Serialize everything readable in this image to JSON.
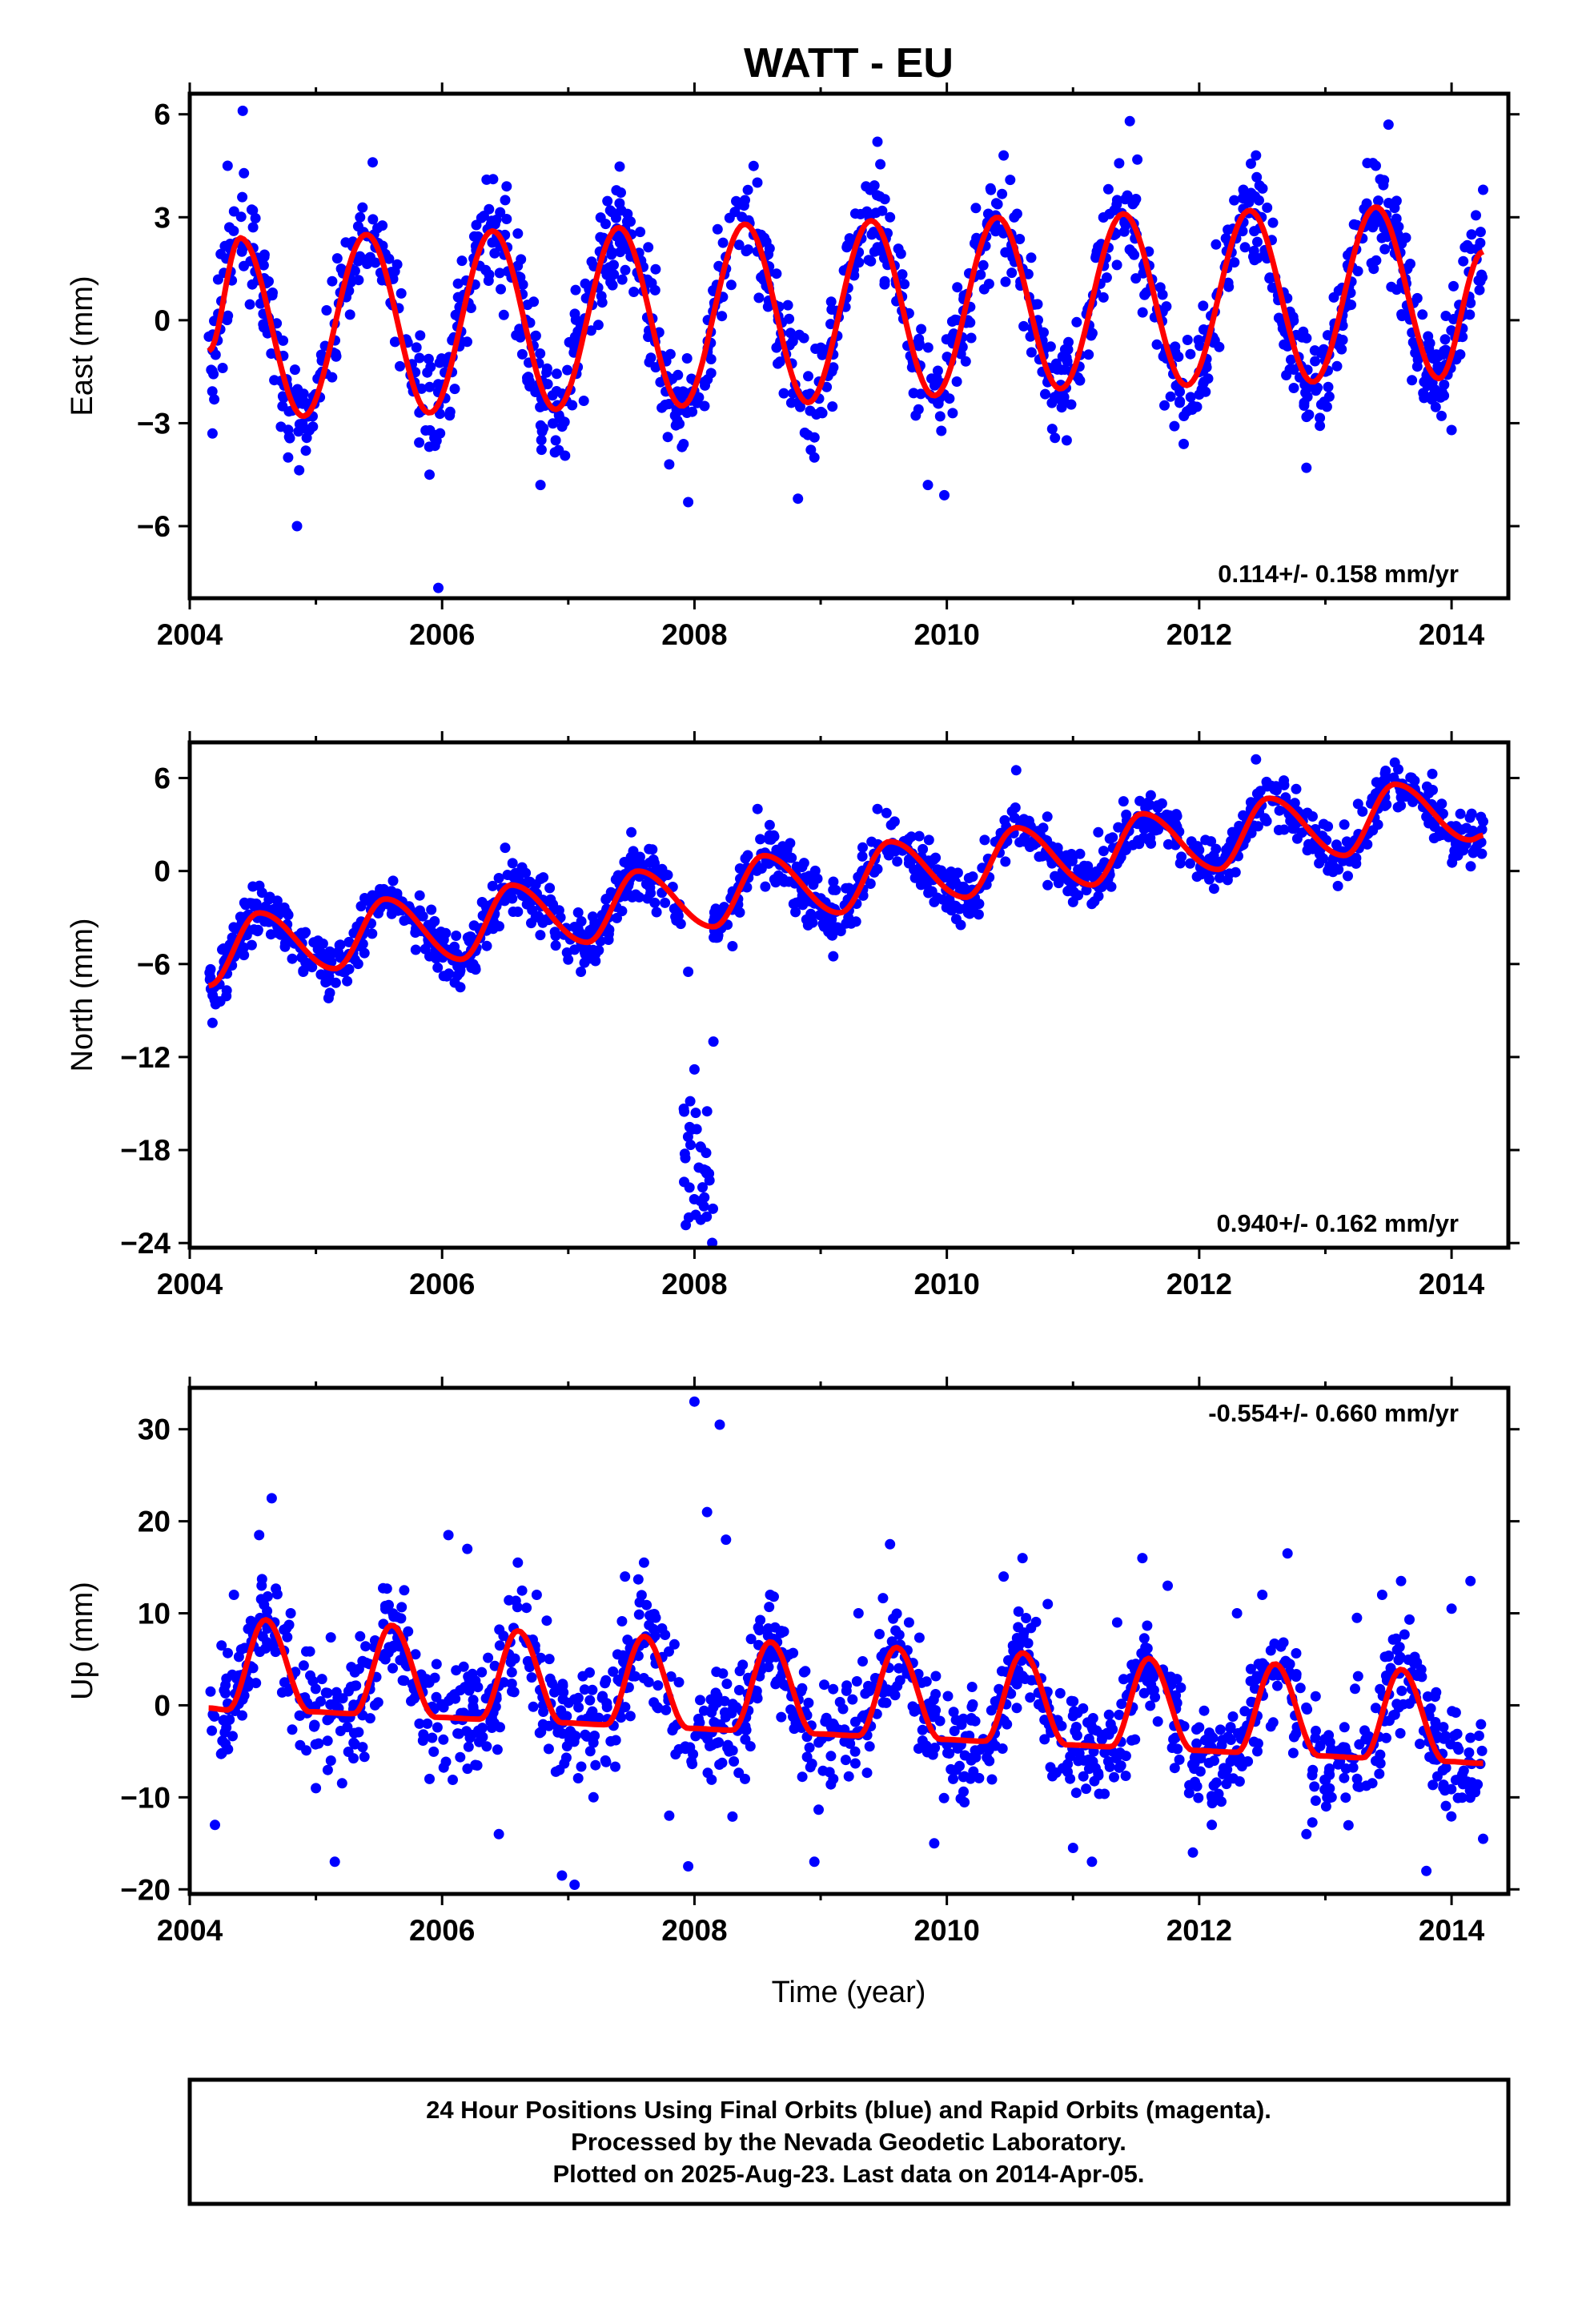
{
  "title": "WATT - EU",
  "x_axis_label": "Time (year)",
  "colors": {
    "points": "#0000ff",
    "fit": "#ff0000",
    "frame": "#000000"
  },
  "footer": {
    "line1": "24 Hour Positions Using Final Orbits (blue) and Rapid Orbits (magenta).",
    "line2": "Processed by the Nevada Geodetic Laboratory.",
    "line3": "Plotted on 2025-Aug-23. Last data on 2014-Apr-05."
  },
  "chart_data": [
    {
      "type": "scatter",
      "name": "east",
      "ylabel": "East (mm)",
      "rate": "0.114+/- 0.158 mm/yr",
      "xlim": [
        2004.0,
        2014.45
      ],
      "ylim": [
        -8.1,
        6.6
      ],
      "xticks": [
        "2004",
        "2006",
        "2008",
        "2010",
        "2012",
        "2014"
      ],
      "yticks": [
        "-6",
        "-3",
        "0",
        "3",
        "6"
      ],
      "fit_curve": {
        "x": [
          2004.15,
          2004.4,
          2004.9,
          2005.4,
          2005.9,
          2006.4,
          2006.9,
          2007.4,
          2007.9,
          2008.4,
          2008.9,
          2009.4,
          2009.9,
          2010.4,
          2010.9,
          2011.4,
          2011.9,
          2012.4,
          2012.9,
          2013.4,
          2013.9,
          2014.25
        ],
        "y": [
          -0.9,
          2.4,
          -2.8,
          2.5,
          -2.7,
          2.6,
          -2.6,
          2.7,
          -2.5,
          2.8,
          -2.4,
          2.9,
          -2.2,
          3.0,
          -2.0,
          3.1,
          -1.9,
          3.2,
          -1.8,
          3.3,
          -1.7,
          2.0
        ]
      },
      "points": {
        "x": [
          2004.18,
          2004.3,
          2004.42,
          2004.5,
          2004.62,
          2004.78,
          2004.85,
          2004.92,
          2005.05,
          2005.2,
          2005.35,
          2005.45,
          2005.6,
          2005.75,
          2005.9,
          2005.97,
          2006.1,
          2006.25,
          2006.42,
          2006.5,
          2006.62,
          2006.78,
          2006.9,
          2007.05,
          2007.25,
          2007.42,
          2007.5,
          2007.65,
          2007.8,
          2007.95,
          2008.08,
          2008.25,
          2008.4,
          2008.5,
          2008.65,
          2008.82,
          2008.95,
          2009.1,
          2009.3,
          2009.45,
          2009.55,
          2009.7,
          2009.85,
          2009.98,
          2010.15,
          2010.32,
          2010.45,
          2010.6,
          2010.8,
          2010.95,
          2011.15,
          2011.35,
          2011.45,
          2011.6,
          2011.8,
          2011.95,
          2012.15,
          2012.35,
          2012.45,
          2012.65,
          2012.85,
          2013.0,
          2013.2,
          2013.4,
          2013.5,
          2013.65,
          2013.85,
          2014.0,
          2014.15,
          2014.25
        ],
        "y": [
          -3.3,
          4.5,
          6.1,
          3.2,
          0.1,
          -4.0,
          -6.0,
          -3.8,
          -1.5,
          1.5,
          3.0,
          4.6,
          0.5,
          -1.6,
          -4.5,
          -7.8,
          -2.0,
          1.8,
          2.8,
          3.5,
          -0.5,
          -4.8,
          -3.5,
          -0.8,
          2.0,
          3.2,
          2.5,
          0.0,
          -4.2,
          -5.3,
          -2.5,
          1.5,
          3.5,
          2.0,
          -0.8,
          -5.2,
          -4.0,
          -1.0,
          2.5,
          5.2,
          3.0,
          0.2,
          -4.8,
          -5.1,
          -1.2,
          2.8,
          4.8,
          1.5,
          -1.8,
          -3.5,
          0.5,
          3.5,
          5.8,
          2.0,
          -1.0,
          -2.5,
          0.8,
          3.8,
          4.8,
          0.0,
          -4.3,
          -1.5,
          0.8,
          4.5,
          5.7,
          1.5,
          -2.2,
          -3.2,
          0.5,
          3.8
        ]
      }
    },
    {
      "type": "scatter",
      "name": "north",
      "ylabel": "North (mm)",
      "rate": "0.940+/- 0.162 mm/yr",
      "xlim": [
        2004.0,
        2014.45
      ],
      "ylim": [
        -24.3,
        8.3
      ],
      "xticks": [
        "2004",
        "2006",
        "2008",
        "2010",
        "2012",
        "2014"
      ],
      "yticks": [
        "-24",
        "-18",
        "-12",
        "-6",
        "0",
        "6"
      ],
      "fit_curve": {
        "x": [
          2004.15,
          2004.55,
          2005.15,
          2005.55,
          2006.15,
          2006.55,
          2007.15,
          2007.55,
          2008.15,
          2008.55,
          2009.15,
          2009.55,
          2010.15,
          2010.55,
          2011.15,
          2011.55,
          2012.15,
          2012.55,
          2013.15,
          2013.55,
          2014.15,
          2014.25
        ],
        "y": [
          -7.4,
          -2.7,
          -6.3,
          -1.8,
          -5.7,
          -0.9,
          -4.6,
          0.0,
          -3.6,
          1.0,
          -2.7,
          1.9,
          -1.7,
          2.8,
          -0.9,
          3.7,
          0.1,
          4.7,
          1.0,
          5.6,
          2.0,
          2.3
        ]
      },
      "points": {
        "x": [
          2004.18,
          2004.3,
          2004.5,
          2004.7,
          2004.9,
          2005.1,
          2005.3,
          2005.5,
          2005.7,
          2005.9,
          2006.1,
          2006.3,
          2006.5,
          2006.7,
          2006.9,
          2007.1,
          2007.3,
          2007.5,
          2007.7,
          2007.95,
          2008.0,
          2008.05,
          2008.1,
          2008.15,
          2008.3,
          2008.5,
          2008.7,
          2008.9,
          2009.1,
          2009.25,
          2009.45,
          2009.7,
          2009.9,
          2010.1,
          2010.3,
          2010.55,
          2010.8,
          2011.0,
          2011.2,
          2011.4,
          2011.6,
          2011.85,
          2012.05,
          2012.25,
          2012.45,
          2012.7,
          2012.95,
          2013.15,
          2013.4,
          2013.55,
          2013.8,
          2014.05,
          2014.25
        ],
        "y": [
          -9.8,
          -5.5,
          -1.0,
          -4.0,
          -6.5,
          -8.2,
          -4.0,
          -1.5,
          -3.2,
          -5.5,
          -7.2,
          -3.8,
          1.5,
          -2.0,
          -4.8,
          -6.5,
          -1.8,
          2.5,
          -0.5,
          -6.5,
          -12.8,
          -22.5,
          -15.5,
          -11.0,
          -2.5,
          4.0,
          -0.5,
          -3.5,
          -5.5,
          -1.5,
          4.0,
          0.5,
          -2.0,
          -1.0,
          2.0,
          6.5,
          1.5,
          -2.0,
          2.5,
          4.5,
          2.0,
          0.5,
          2.0,
          0.8,
          7.2,
          4.0,
          0.5,
          3.0,
          5.0,
          7.0,
          3.5,
          1.0,
          3.2
        ]
      }
    },
    {
      "type": "scatter",
      "name": "up",
      "ylabel": "Up (mm)",
      "rate": "-0.554+/- 0.660 mm/yr",
      "xlim": [
        2004.0,
        2014.45
      ],
      "ylim": [
        -20.5,
        34.5
      ],
      "xticks": [
        "2004",
        "2006",
        "2008",
        "2010",
        "2012",
        "2014"
      ],
      "yticks": [
        "-20",
        "-10",
        "0",
        "10",
        "20",
        "30"
      ],
      "fit_curve": {
        "x": [
          2004.15,
          2004.3,
          2004.6,
          2004.95,
          2005.3,
          2005.6,
          2005.95,
          2006.3,
          2006.6,
          2006.95,
          2007.3,
          2007.6,
          2007.95,
          2008.3,
          2008.6,
          2008.95,
          2009.3,
          2009.6,
          2009.95,
          2010.3,
          2010.6,
          2010.95,
          2011.3,
          2011.6,
          2011.95,
          2012.3,
          2012.6,
          2012.95,
          2013.3,
          2013.6,
          2013.95,
          2014.25
        ],
        "y": [
          -0.3,
          -0.5,
          9.3,
          -0.7,
          -0.9,
          8.7,
          -1.3,
          -1.5,
          8.1,
          -1.9,
          -2.1,
          7.5,
          -2.5,
          -2.7,
          6.9,
          -3.1,
          -3.3,
          6.3,
          -3.7,
          -3.9,
          5.7,
          -4.3,
          -4.5,
          5.1,
          -4.9,
          -5.1,
          4.5,
          -5.5,
          -5.7,
          3.9,
          -6.1,
          -6.3
        ]
      },
      "points": {
        "x": [
          2004.2,
          2004.35,
          2004.55,
          2004.65,
          2004.8,
          2005.0,
          2005.15,
          2005.35,
          2005.55,
          2005.7,
          2005.9,
          2006.05,
          2006.2,
          2006.45,
          2006.6,
          2006.75,
          2006.95,
          2007.05,
          2007.2,
          2007.45,
          2007.6,
          2007.8,
          2007.95,
          2008.0,
          2008.1,
          2008.2,
          2008.25,
          2008.4,
          2008.6,
          2008.75,
          2008.95,
          2009.1,
          2009.3,
          2009.55,
          2009.7,
          2009.9,
          2010.05,
          2010.2,
          2010.45,
          2010.6,
          2010.8,
          2011.0,
          2011.15,
          2011.35,
          2011.55,
          2011.75,
          2011.95,
          2012.1,
          2012.3,
          2012.5,
          2012.7,
          2012.85,
          2013.05,
          2013.25,
          2013.45,
          2013.6,
          2013.8,
          2014.0,
          2014.15,
          2014.25
        ],
        "y": [
          -13.0,
          12.0,
          18.5,
          22.5,
          10.0,
          -9.0,
          -17.0,
          7.5,
          5.0,
          12.5,
          -8.0,
          18.5,
          17.0,
          -14.0,
          15.5,
          12.0,
          -18.5,
          -19.5,
          -10.0,
          14.0,
          15.5,
          -12.0,
          -17.5,
          33.0,
          21.0,
          30.5,
          18.0,
          -8.0,
          12.0,
          5.5,
          -17.0,
          -8.0,
          10.0,
          17.5,
          9.0,
          -15.0,
          -8.0,
          2.0,
          14.0,
          16.0,
          11.0,
          -15.5,
          -17.0,
          9.0,
          16.0,
          13.0,
          -16.0,
          -13.0,
          10.0,
          12.0,
          16.5,
          -14.0,
          -10.0,
          9.5,
          12.0,
          13.5,
          -18.0,
          10.5,
          13.5,
          -14.5
        ]
      }
    }
  ]
}
